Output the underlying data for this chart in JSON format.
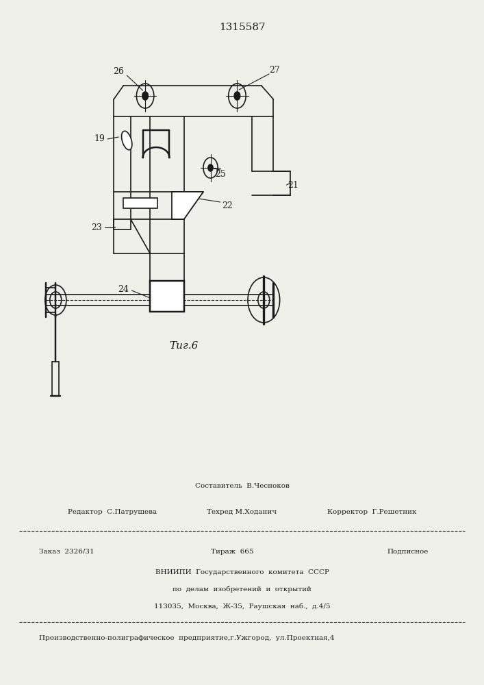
{
  "patent_number": "1315587",
  "fig_label": "Τиг.6",
  "background_color": "#f0f0eb",
  "line_color": "#1a1a1a",
  "footer": {
    "line1_center": "Составитель  В.Чесноков",
    "line2_left": "Редактор  С.Патрушева",
    "line2_center": "Техред М.Ходанич",
    "line2_right": "Корректор  Г.Решетник",
    "line3_left": "Заказ  2326/31",
    "line3_center": "Тираж  665",
    "line3_right": "Подписное",
    "line4": "ВНИИПИ  Государственного  комитета  СССР",
    "line5": "по  делам  изобретений  и  открытий",
    "line6": "113035,  Москва,  Ж-35,  Раушская  наб.,  д.4/5",
    "line7": "Производственно-полиграфическое  предприятие,г.Ужгород,  ул.Проектная,4"
  }
}
